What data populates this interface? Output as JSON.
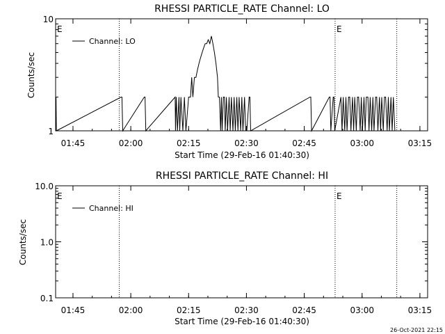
{
  "footer_timestamp": "26-Oct-2021 22:15",
  "chart_data": [
    {
      "type": "line",
      "title": "RHESSI PARTICLE_RATE Channel: LO",
      "xlabel": "Start Time (29-Feb-16 01:40:30)",
      "ylabel": "Counts/sec",
      "x_ticks": [
        "01:45",
        "02:00",
        "02:15",
        "02:30",
        "02:45",
        "03:00",
        "03:15"
      ],
      "x_tick_minutes": [
        4.5,
        19.5,
        34.5,
        49.5,
        64.5,
        79.5,
        94.5
      ],
      "xlim_minutes": [
        0,
        96.5
      ],
      "y_scale": "log",
      "y_ticks": [
        "1",
        "10"
      ],
      "y_tick_values": [
        1,
        10
      ],
      "ylim": [
        1,
        10
      ],
      "legend": "Channel: LO",
      "legend_position": "top-left",
      "eclipse_marker": "E",
      "eclipse_markers_minutes": [
        0,
        72.5
      ],
      "vertical_dotted_lines_minutes": [
        16.5,
        72.5,
        88.5
      ],
      "series": [
        {
          "name": "Channel: LO",
          "x": [
            0.0,
            0.1,
            0.2,
            17.0,
            17.2,
            17.4,
            23.0,
            23.2,
            23.4,
            31.0,
            31.1,
            31.3,
            31.6,
            32.0,
            32.2,
            32.5,
            33.0,
            33.4,
            33.8,
            34.5,
            35.0,
            35.3,
            35.6,
            36.0,
            36.4,
            36.8,
            37.2,
            37.6,
            38.0,
            38.4,
            38.8,
            39.2,
            39.6,
            40.0,
            40.4,
            40.8,
            41.2,
            41.6,
            42.0,
            42.2,
            42.5,
            42.8,
            43.0,
            43.2,
            43.5,
            43.8,
            44.0,
            44.3,
            44.6,
            45.0,
            45.3,
            45.6,
            46.0,
            46.3,
            46.6,
            47.0,
            47.3,
            47.6,
            48.0,
            48.3,
            48.6,
            49.0,
            49.3,
            49.6,
            50.2,
            50.4,
            50.6,
            66.0,
            66.2,
            66.4,
            71.0,
            71.2,
            71.4,
            72.0,
            72.2,
            72.4,
            74.0,
            74.3,
            74.6,
            75.0,
            75.3,
            75.6,
            76.0,
            76.3,
            76.6,
            77.0,
            77.3,
            77.6,
            78.0,
            78.3,
            78.6,
            79.0,
            79.3,
            79.6,
            80.0,
            80.3,
            80.6,
            81.0,
            81.3,
            81.6,
            82.0,
            82.3,
            82.6,
            83.0,
            83.3,
            83.6,
            84.0,
            84.3,
            84.6,
            85.0,
            85.3,
            85.6,
            86.0,
            86.3,
            86.6,
            87.0,
            87.3,
            87.6,
            88.0
          ],
          "y": [
            2,
            2,
            1,
            2,
            2,
            1,
            2,
            2,
            1,
            2,
            1,
            2,
            1,
            2,
            1,
            2,
            1,
            2,
            1,
            2,
            2,
            3,
            2,
            3,
            3,
            3.5,
            4,
            4.5,
            5,
            5.5,
            6,
            6,
            6.5,
            6,
            7,
            6,
            5,
            4,
            3,
            2,
            2,
            1,
            2,
            1,
            2,
            2,
            1,
            2,
            1,
            2,
            1,
            2,
            1,
            2,
            1,
            2,
            1,
            2,
            1,
            2,
            1,
            2,
            1,
            1,
            2,
            2,
            1,
            2,
            2,
            1,
            2,
            2,
            1,
            2,
            2,
            1,
            2,
            1,
            2,
            1,
            2,
            1,
            2,
            2,
            1,
            2,
            1,
            2,
            1,
            2,
            2,
            1,
            2,
            1,
            2,
            1,
            2,
            2,
            1,
            2,
            1,
            2,
            1,
            2,
            2,
            1,
            2,
            1,
            2,
            1,
            2,
            2,
            1,
            2,
            1,
            2,
            1,
            2,
            1
          ]
        }
      ]
    },
    {
      "type": "line",
      "title": "RHESSI PARTICLE_RATE Channel: HI",
      "xlabel": "Start Time (29-Feb-16 01:40:30)",
      "ylabel": "Counts/sec",
      "x_ticks": [
        "01:45",
        "02:00",
        "02:15",
        "02:30",
        "02:45",
        "03:00",
        "03:15"
      ],
      "x_tick_minutes": [
        4.5,
        19.5,
        34.5,
        49.5,
        64.5,
        79.5,
        94.5
      ],
      "xlim_minutes": [
        0,
        96.5
      ],
      "y_scale": "log",
      "y_ticks": [
        "0.1",
        "1.0",
        "10.0"
      ],
      "y_tick_values": [
        0.1,
        1,
        10
      ],
      "ylim": [
        0.1,
        10
      ],
      "legend": "Channel: HI",
      "legend_position": "top-left",
      "eclipse_marker": "E",
      "eclipse_markers_minutes": [
        0,
        72.5
      ],
      "vertical_dotted_lines_minutes": [
        16.5,
        72.5,
        88.5
      ],
      "series": [
        {
          "name": "Channel: HI",
          "x": [],
          "y": []
        }
      ]
    }
  ]
}
